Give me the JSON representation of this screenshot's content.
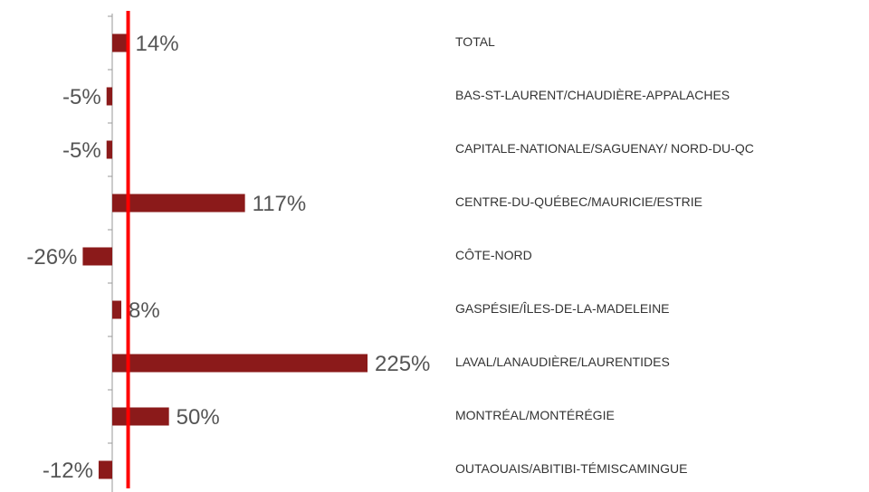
{
  "chart_data": {
    "type": "hbar",
    "categories": [
      "TOTAL",
      "BAS-ST-LAURENT/CHAUDIÈRE-APPALACHES",
      "CAPITALE-NATIONALE/SAGUENAY/ NORD-DU-QC",
      "CENTRE-DU-QUÉBEC/MAURICIE/ESTRIE",
      "CÔTE-NORD",
      "GASPÉSIE/ÎLES-DE-LA-MADELEINE",
      "LAVAL/LANAUDIÈRE/LAURENTIDES",
      "MONTRÉAL/MONTÉRÉGIE",
      "OUTAOUAIS/ABITIBI-TÉMISCAMINGUE"
    ],
    "values": [
      14,
      -5,
      -5,
      117,
      -26,
      8,
      225,
      50,
      -12
    ],
    "value_labels": [
      "14%",
      "-5%",
      "-5%",
      "117%",
      "-26%",
      "8%",
      "225%",
      "50%",
      "-12%"
    ],
    "color": "#8b1a1a",
    "xlim": [
      -26,
      225
    ],
    "reference_value": 14,
    "reference_color": "#ff0000"
  }
}
